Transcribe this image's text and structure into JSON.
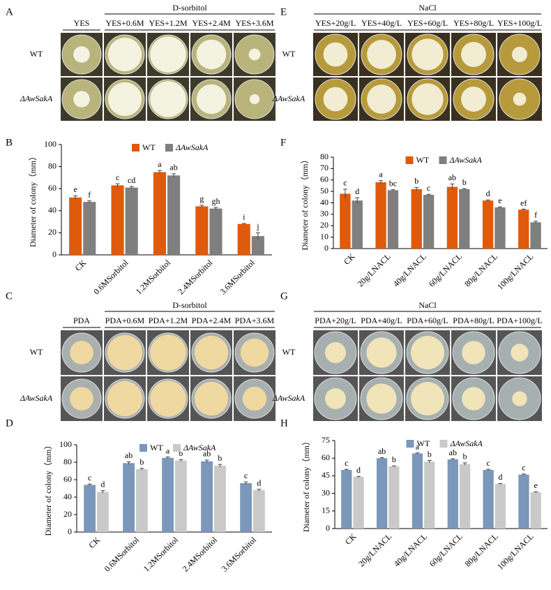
{
  "panels": [
    {
      "label": "A",
      "group": "D-sorbitol",
      "columns": [
        "YES",
        "YES+0.6M",
        "YES+1.2M",
        "YES+2.4M",
        "YES+3.6M"
      ],
      "rows": [
        "WT",
        "ΔAwSakA"
      ]
    },
    {
      "label": "E",
      "group": "NaCl",
      "columns": [
        "YES+20g/L",
        "YES+40g/L",
        "YES+60g/L",
        "YES+80g/L",
        "YES+100g/L"
      ],
      "rows": [
        "WT",
        "ΔAwSakA"
      ]
    },
    {
      "label": "C",
      "group": "D-sorbitol",
      "columns": [
        "PDA",
        "PDA+0.6M",
        "PDA+1.2M",
        "PDA+2.4M",
        "PDA+3.6M"
      ],
      "rows": [
        "WT",
        "ΔAwSakA"
      ]
    },
    {
      "label": "G",
      "group": "NaCl",
      "columns": [
        "PDA+20g/L",
        "PDA+40g/L",
        "PDA+60g/L",
        "PDA+80g/L",
        "PDA+100g/L"
      ],
      "rows": [
        "WT",
        "ΔAwSakA"
      ]
    }
  ],
  "chart_data": [
    {
      "type": "bar",
      "label": "B",
      "ylabel": "Diameter of colony（mm）",
      "ylim": [
        0,
        100
      ],
      "yticks": [
        0,
        20,
        40,
        60,
        80,
        100
      ],
      "legend": "top",
      "categories": [
        "CK",
        "0.6MSorbitol",
        "1.2MSorbitol",
        "2.4MSorbitol",
        "3.6MSorbitol"
      ],
      "series": [
        {
          "name": "WT",
          "color": "#e05a0c",
          "values": [
            52,
            63,
            75,
            44,
            28
          ],
          "errors": [
            1.5,
            1.5,
            1.5,
            1,
            0.5
          ],
          "significance": [
            "e",
            "c",
            "a",
            "g",
            "i"
          ]
        },
        {
          "name": "ΔAwSakA",
          "color": "#7f7f7f",
          "values": [
            48,
            61,
            72,
            42,
            17
          ],
          "errors": [
            1,
            1,
            1.5,
            1,
            3
          ],
          "significance": [
            "f",
            "cd",
            "ab",
            "gh",
            "j"
          ]
        }
      ]
    },
    {
      "type": "bar",
      "label": "F",
      "ylabel": "Diameter of colony（mm）",
      "ylim": [
        0,
        80
      ],
      "yticks": [
        0,
        10,
        20,
        30,
        40,
        50,
        60,
        70,
        80
      ],
      "legend": "top",
      "categories": [
        "CK",
        "20g/LNACL",
        "40g/LNACL",
        "60g/LNACL",
        "80g/LNACL",
        "100g/LNACL"
      ],
      "series": [
        {
          "name": "WT",
          "color": "#e05a0c",
          "values": [
            48,
            58,
            52,
            54,
            42,
            34
          ],
          "errors": [
            4,
            1.5,
            1.5,
            2.5,
            0.5,
            0.5
          ],
          "significance": [
            "c",
            "a",
            "b",
            "ab",
            "d",
            "ef"
          ]
        },
        {
          "name": "ΔAwSakA",
          "color": "#7f7f7f",
          "values": [
            42,
            51,
            47,
            52,
            36,
            23
          ],
          "errors": [
            2.5,
            0.5,
            0.5,
            0.5,
            0.5,
            1
          ],
          "significance": [
            "d",
            "bc",
            "c",
            "b",
            "e",
            "f"
          ]
        }
      ]
    },
    {
      "type": "bar",
      "label": "D",
      "ylabel": "Diameter of colony（mm）",
      "ylim": [
        0,
        100
      ],
      "yticks": [
        0,
        20,
        40,
        60,
        80,
        100
      ],
      "legend": "top",
      "categories": [
        "CK",
        "0.6MSorbitol",
        "1.2MSorbitol",
        "2.4MSorbitol",
        "3.6MSorbitol"
      ],
      "series": [
        {
          "name": "WT",
          "color": "#7b97b9",
          "values": [
            54,
            79,
            85,
            81,
            56
          ],
          "errors": [
            1,
            1.5,
            1,
            1.5,
            1.5
          ],
          "significance": [
            "c",
            "ab",
            "a",
            "ab",
            "c"
          ]
        },
        {
          "name": "ΔAwSakA",
          "color": "#c9c9c9",
          "values": [
            46,
            72,
            82,
            76,
            48
          ],
          "errors": [
            1.5,
            1,
            1,
            1.5,
            1
          ],
          "significance": [
            "d",
            "b",
            "b",
            "b",
            "d"
          ]
        }
      ]
    },
    {
      "type": "bar",
      "label": "H",
      "ylabel": "Diameter of colony（mm）",
      "ylim": [
        0,
        75
      ],
      "yticks": [
        0,
        15,
        30,
        45,
        60,
        75
      ],
      "legend": "top",
      "categories": [
        "CK",
        "20g/LNACL",
        "40g/LNACL",
        "60g/LNACL",
        "80g/LNACL",
        "100g/LNACL"
      ],
      "series": [
        {
          "name": "WT",
          "color": "#7b97b9",
          "values": [
            50,
            60,
            64,
            59,
            50,
            46
          ],
          "errors": [
            0.5,
            0.5,
            0.5,
            0.5,
            0.5,
            0.5
          ],
          "significance": [
            "c",
            "ab",
            "a",
            "ab",
            "c",
            "c"
          ]
        },
        {
          "name": "ΔAwSakA",
          "color": "#c9c9c9",
          "values": [
            44,
            53,
            57,
            55,
            38,
            31
          ],
          "errors": [
            0.5,
            0.5,
            1,
            1,
            0.5,
            0.5
          ],
          "significance": [
            "d",
            "b",
            "b",
            "b",
            "d",
            "e"
          ]
        }
      ]
    }
  ]
}
